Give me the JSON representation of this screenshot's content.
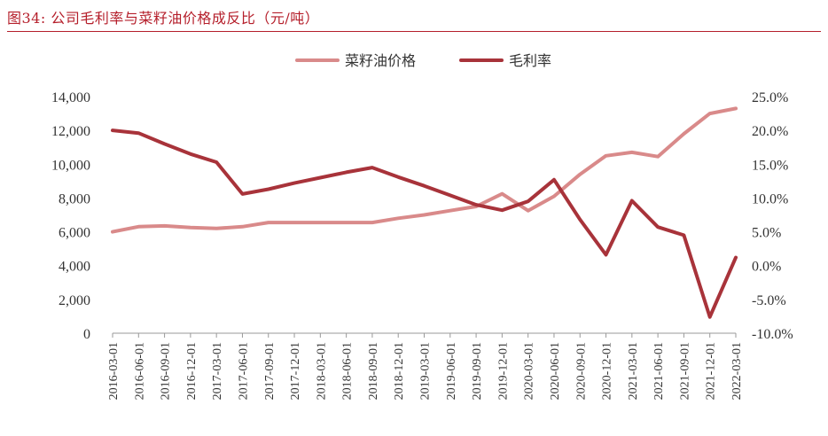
{
  "header": {
    "title": "图34:   公司毛利率与菜籽油价格成反比（元/吨）"
  },
  "chart_data": {
    "type": "line",
    "title": "公司毛利率与菜籽油价格成反比（元/吨）",
    "categories": [
      "2016-03-01",
      "2016-06-01",
      "2016-09-01",
      "2016-12-01",
      "2017-03-01",
      "2017-06-01",
      "2017-09-01",
      "2017-12-01",
      "2018-03-01",
      "2018-06-01",
      "2018-09-01",
      "2018-12-01",
      "2019-03-01",
      "2019-06-01",
      "2019-09-01",
      "2019-12-01",
      "2020-03-01",
      "2020-06-01",
      "2020-09-01",
      "2020-12-01",
      "2021-03-01",
      "2021-06-01",
      "2021-09-01",
      "2021-12-01",
      "2022-03-01"
    ],
    "y_left": {
      "ticks": [
        0,
        2000,
        4000,
        6000,
        8000,
        10000,
        12000,
        14000
      ],
      "tick_labels": [
        "0",
        "2,000",
        "4,000",
        "6,000",
        "8,000",
        "10,000",
        "12,000",
        "14,000"
      ],
      "ylim": [
        0,
        14000
      ]
    },
    "y_right": {
      "ticks": [
        -10,
        -5,
        0,
        5,
        10,
        15,
        20,
        25
      ],
      "tick_labels": [
        "-10.0%",
        "-5.0%",
        "0.0%",
        "5.0%",
        "10.0%",
        "15.0%",
        "20.0%",
        "25.0%"
      ],
      "ylim": [
        -10,
        25
      ]
    },
    "series": [
      {
        "name": "菜籽油价格",
        "axis": "left",
        "color": "#d98a8a",
        "values": [
          6000,
          6300,
          6350,
          6250,
          6200,
          6300,
          6550,
          6550,
          6550,
          6550,
          6550,
          6800,
          7000,
          7250,
          7500,
          8250,
          7250,
          8100,
          9400,
          10500,
          10700,
          10450,
          11800,
          13000,
          13300
        ]
      },
      {
        "name": "毛利率",
        "axis": "right",
        "color": "#a8333a",
        "values": [
          20.0,
          19.6,
          18.0,
          16.5,
          15.3,
          10.6,
          11.3,
          12.2,
          13.0,
          13.8,
          14.5,
          13.1,
          11.8,
          10.4,
          9.0,
          8.2,
          9.5,
          12.7,
          6.8,
          1.6,
          9.6,
          5.7,
          4.5,
          -7.6,
          1.2
        ]
      }
    ],
    "legend_position": "top-center"
  }
}
